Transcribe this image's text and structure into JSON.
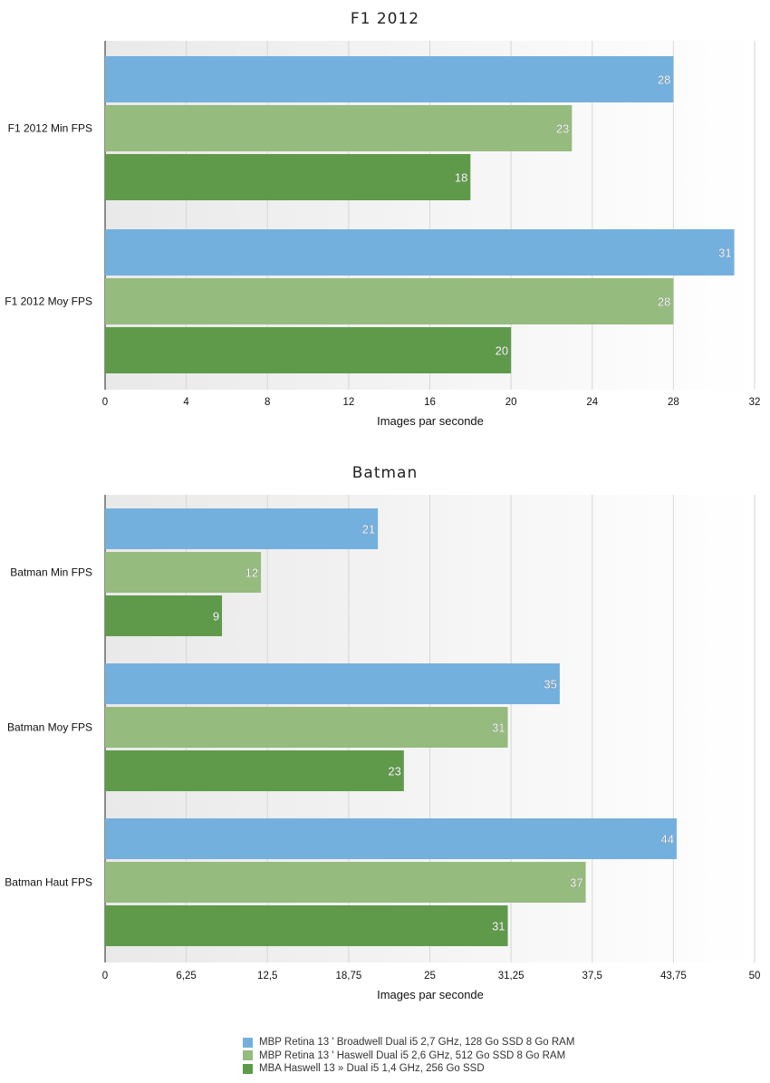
{
  "colors": {
    "series1": "#74b0de",
    "series2": "#96bb7e",
    "series3": "#5e9a4a"
  },
  "legend": [
    {
      "label": "MBP Retina 13 ' Broadwell Dual i5 2,7 GHz, 128 Go SSD 8 Go RAM",
      "color": "#74b0de"
    },
    {
      "label": "MBP Retina 13 ' Haswell Dual i5 2,6 GHz, 512 Go SSD 8 Go RAM",
      "color": "#96bb7e"
    },
    {
      "label": "MBA Haswell 13 » Dual i5 1,4 GHz, 256 Go SSD",
      "color": "#5e9a4a"
    }
  ],
  "chart_data": [
    {
      "type": "bar",
      "orientation": "horizontal",
      "title": "F1 2012",
      "xlabel": "Images par seconde",
      "xlim": [
        0,
        32
      ],
      "ticks": [
        "0",
        "4",
        "8",
        "12",
        "16",
        "20",
        "24",
        "28",
        "32"
      ],
      "categories": [
        "F1 2012 Min FPS",
        "F1 2012 Moy FPS"
      ],
      "series": [
        {
          "name": "MBP Retina 13 ' Broadwell Dual i5 2,7 GHz, 128 Go SSD 8 Go RAM",
          "values": [
            28,
            31
          ]
        },
        {
          "name": "MBP Retina 13 ' Haswell Dual i5 2,6 GHz, 512 Go SSD 8 Go RAM",
          "values": [
            23,
            28
          ]
        },
        {
          "name": "MBA Haswell 13 » Dual i5 1,4 GHz, 256 Go SSD",
          "values": [
            18,
            20
          ]
        }
      ],
      "grid": true
    },
    {
      "type": "bar",
      "orientation": "horizontal",
      "title": "Batman",
      "xlabel": "Images par seconde",
      "xlim": [
        0,
        50
      ],
      "ticks": [
        "0",
        "6,25",
        "12,5",
        "18,75",
        "25",
        "31,25",
        "37,5",
        "43,75",
        "50"
      ],
      "categories": [
        "Batman Min FPS",
        "Batman Moy FPS",
        "Batman Haut FPS"
      ],
      "series": [
        {
          "name": "MBP Retina 13 ' Broadwell Dual i5 2,7 GHz, 128 Go SSD 8 Go RAM",
          "values": [
            21,
            35,
            44
          ]
        },
        {
          "name": "MBP Retina 13 ' Haswell Dual i5 2,6 GHz, 512 Go SSD 8 Go RAM",
          "values": [
            12,
            31,
            37
          ]
        },
        {
          "name": "MBA Haswell 13 » Dual i5 1,4 GHz, 256 Go SSD",
          "values": [
            9,
            23,
            31
          ]
        }
      ],
      "grid": true
    }
  ]
}
